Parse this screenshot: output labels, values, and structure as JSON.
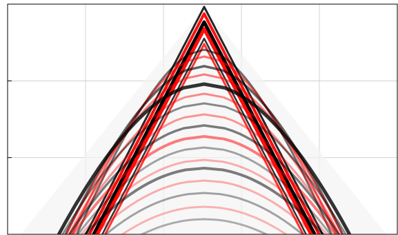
{
  "figure": {
    "description_kind": "seismic-wavefield-image",
    "colors": {
      "background": "#ffffff",
      "frame": "#000000",
      "grid": "#c8c8c8",
      "positive_amplitude": "#ff0000",
      "negative_amplitude": "#000000"
    },
    "grid": {
      "enabled": true,
      "vertical_lines": 4,
      "horizontal_lines": 2
    },
    "tick_labels_visible": false
  }
}
